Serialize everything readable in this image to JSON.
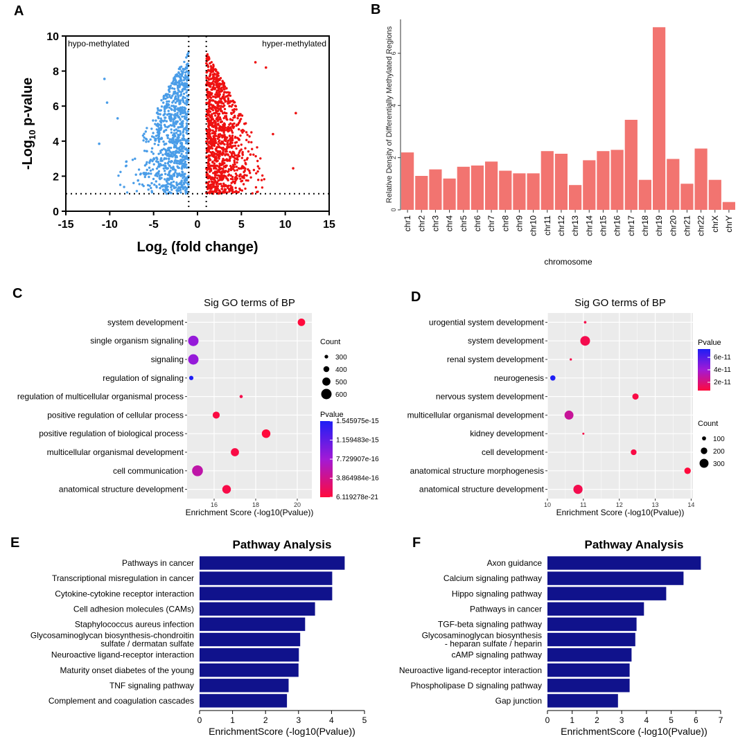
{
  "panels": {
    "A": "A",
    "B": "B",
    "C": "C",
    "D": "D",
    "E": "E",
    "F": "F"
  },
  "chart_data": [
    {
      "id": "A",
      "type": "scatter",
      "title": "",
      "xlabel_main": "Log",
      "xlabel_sub": "2",
      "xlabel_rest": " (fold change)",
      "ylabel_pre": "-Log",
      "ylabel_sub": "10",
      "ylabel_rest": " p-value",
      "xlim": [
        -15,
        15
      ],
      "ylim": [
        0,
        10
      ],
      "xticks": [
        -15,
        -10,
        -5,
        0,
        5,
        10,
        15
      ],
      "yticks": [
        0,
        2,
        4,
        6,
        8,
        10
      ],
      "annotations": {
        "left": "hypo-methylated",
        "right": "hyper-methylated"
      },
      "thresholds": {
        "vlines": [
          -1,
          1
        ],
        "hline": 1
      },
      "series": [
        {
          "name": "hypo-methylated",
          "color": "#4a9de8",
          "x_range": [
            -11,
            -1
          ],
          "count": 900
        },
        {
          "name": "hyper-methylated",
          "color": "#ee1111",
          "x_range": [
            1,
            11.2
          ],
          "count": 1100
        }
      ],
      "outliers": [
        [
          -11.2,
          3.85
        ],
        [
          -10.6,
          7.55
        ],
        [
          -10.3,
          6.2
        ],
        [
          -9.1,
          5.3
        ],
        [
          7.8,
          8.2
        ],
        [
          8.6,
          4.4
        ],
        [
          10.9,
          2.45
        ],
        [
          11.2,
          5.6
        ],
        [
          6.6,
          8.5
        ]
      ]
    },
    {
      "id": "B",
      "type": "bar",
      "categories": [
        "chr1",
        "chr2",
        "chr3",
        "chr4",
        "chr5",
        "chr6",
        "chr7",
        "chr8",
        "chr9",
        "chr10",
        "chr11",
        "chr12",
        "chr13",
        "chr14",
        "chr15",
        "chr16",
        "chr17",
        "chr18",
        "chr19",
        "chr20",
        "chr21",
        "chr22",
        "chrX",
        "chrY"
      ],
      "values": [
        2.2,
        1.3,
        1.55,
        1.2,
        1.65,
        1.7,
        1.85,
        1.5,
        1.4,
        1.4,
        2.25,
        2.15,
        0.95,
        1.9,
        2.25,
        2.3,
        3.45,
        1.15,
        7.0,
        1.95,
        1.0,
        2.35,
        1.15,
        0.3
      ],
      "xlabel": "chromosome",
      "ylabel": "Relative Density of Differentially Methylated Regions",
      "ylim": [
        0,
        7.3
      ],
      "yticks": [
        0,
        2,
        4,
        6
      ],
      "color": "#f27470"
    },
    {
      "id": "C",
      "type": "scatter",
      "title": "Sig GO terms of BP",
      "xlabel": "Enrichment Score (-log10(Pvalue))",
      "xlim": [
        14.7,
        20.7
      ],
      "xticks": [
        16,
        18,
        20
      ],
      "categories": [
        "system development",
        "single organism signaling",
        "signaling",
        "regulation of signaling",
        "regulation of multicellular organismal process",
        "positive regulation of cellular process",
        "positive regulation of biological process",
        "multicellular organismal development",
        "cell communication",
        "anatomical structure development"
      ],
      "x": [
        20.2,
        15.0,
        15.0,
        14.9,
        17.3,
        16.1,
        18.5,
        17.0,
        15.2,
        16.6
      ],
      "count": [
        470,
        600,
        600,
        330,
        280,
        450,
        520,
        500,
        620,
        520
      ],
      "pvalue_norm": [
        0.0,
        0.55,
        0.55,
        1.0,
        0.05,
        0.02,
        0.0,
        0.03,
        0.35,
        0.04
      ],
      "size_legend": {
        "title": "Count",
        "values": [
          300,
          400,
          500,
          600
        ]
      },
      "color_legend": {
        "title": "Pvalue",
        "labels": [
          "1.545975e-15",
          "1.159483e-15",
          "7.729907e-16",
          "3.864984e-16",
          "6.119278e-21"
        ]
      }
    },
    {
      "id": "D",
      "type": "scatter",
      "title": "Sig GO terms of BP",
      "xlabel": "Enrichment Score (-log10(Pvalue))",
      "xlim": [
        10,
        14.05
      ],
      "xticks": [
        10,
        11,
        12,
        13,
        14
      ],
      "categories": [
        "urogential system development",
        "system development",
        "renal system development",
        "neurogenesis",
        "nervous system development",
        "multicellular organismal development",
        "kidney development",
        "cell development",
        "anatomical structure morphogenesis",
        "anatomical structure development"
      ],
      "x": [
        11.05,
        11.05,
        10.65,
        10.15,
        12.45,
        10.6,
        11.0,
        12.4,
        13.9,
        10.85
      ],
      "count": [
        40,
        330,
        30,
        150,
        190,
        300,
        20,
        170,
        200,
        310
      ],
      "pvalue_norm": [
        0.05,
        0.06,
        0.05,
        1.0,
        0.03,
        0.3,
        0.04,
        0.03,
        0.0,
        0.06
      ],
      "size_legend": {
        "title": "Count",
        "values": [
          100,
          200,
          300
        ]
      },
      "color_legend": {
        "title": "Pvalue",
        "labels": [
          "6e-11",
          "4e-11",
          "2e-11"
        ]
      }
    },
    {
      "id": "E",
      "type": "bar",
      "orientation": "horizontal",
      "title": "Pathway Analysis",
      "xlabel": "EnrichmentScore (-log10(Pvalue))",
      "xlim": [
        0,
        5
      ],
      "xticks": [
        0,
        1,
        2,
        3,
        4,
        5
      ],
      "categories": [
        "Pathways in cancer",
        "Transcriptional misregulation in cancer",
        "Cytokine-cytokine receptor interaction",
        "Cell adhesion molecules (CAMs)",
        "Staphylococcus aureus infection",
        "Glycosaminoglycan biosynthesis-chondroitin\nsulfate / dermatan sulfate",
        "Neuroactive ligand-receptor interaction",
        "Maturity onset diabetes of the young",
        "TNF signaling pathway",
        "Complement and coagulation cascades"
      ],
      "values": [
        4.4,
        4.02,
        4.02,
        3.5,
        3.2,
        3.05,
        3.01,
        3.0,
        2.7,
        2.65
      ],
      "color": "#10128c"
    },
    {
      "id": "F",
      "type": "bar",
      "orientation": "horizontal",
      "title": "Pathway Analysis",
      "xlabel": "EnrichmentScore (-log10(Pvalue))",
      "xlim": [
        0,
        7
      ],
      "xticks": [
        0,
        1,
        2,
        3,
        4,
        5,
        6,
        7
      ],
      "categories": [
        "Axon guidance",
        "Calcium signaling pathway",
        "Hippo signaling pathway",
        "Pathways in cancer",
        "TGF-beta signaling pathway",
        "Glycosaminoglycan biosynthesis\n- heparan sulfate / heparin",
        "cAMP signaling pathway",
        "Neuroactive ligand-receptor interaction",
        "Phospholipase D signaling pathway",
        "Gap junction"
      ],
      "values": [
        6.2,
        5.5,
        4.8,
        3.9,
        3.6,
        3.55,
        3.4,
        3.32,
        3.32,
        2.85
      ],
      "color": "#10128c"
    }
  ]
}
